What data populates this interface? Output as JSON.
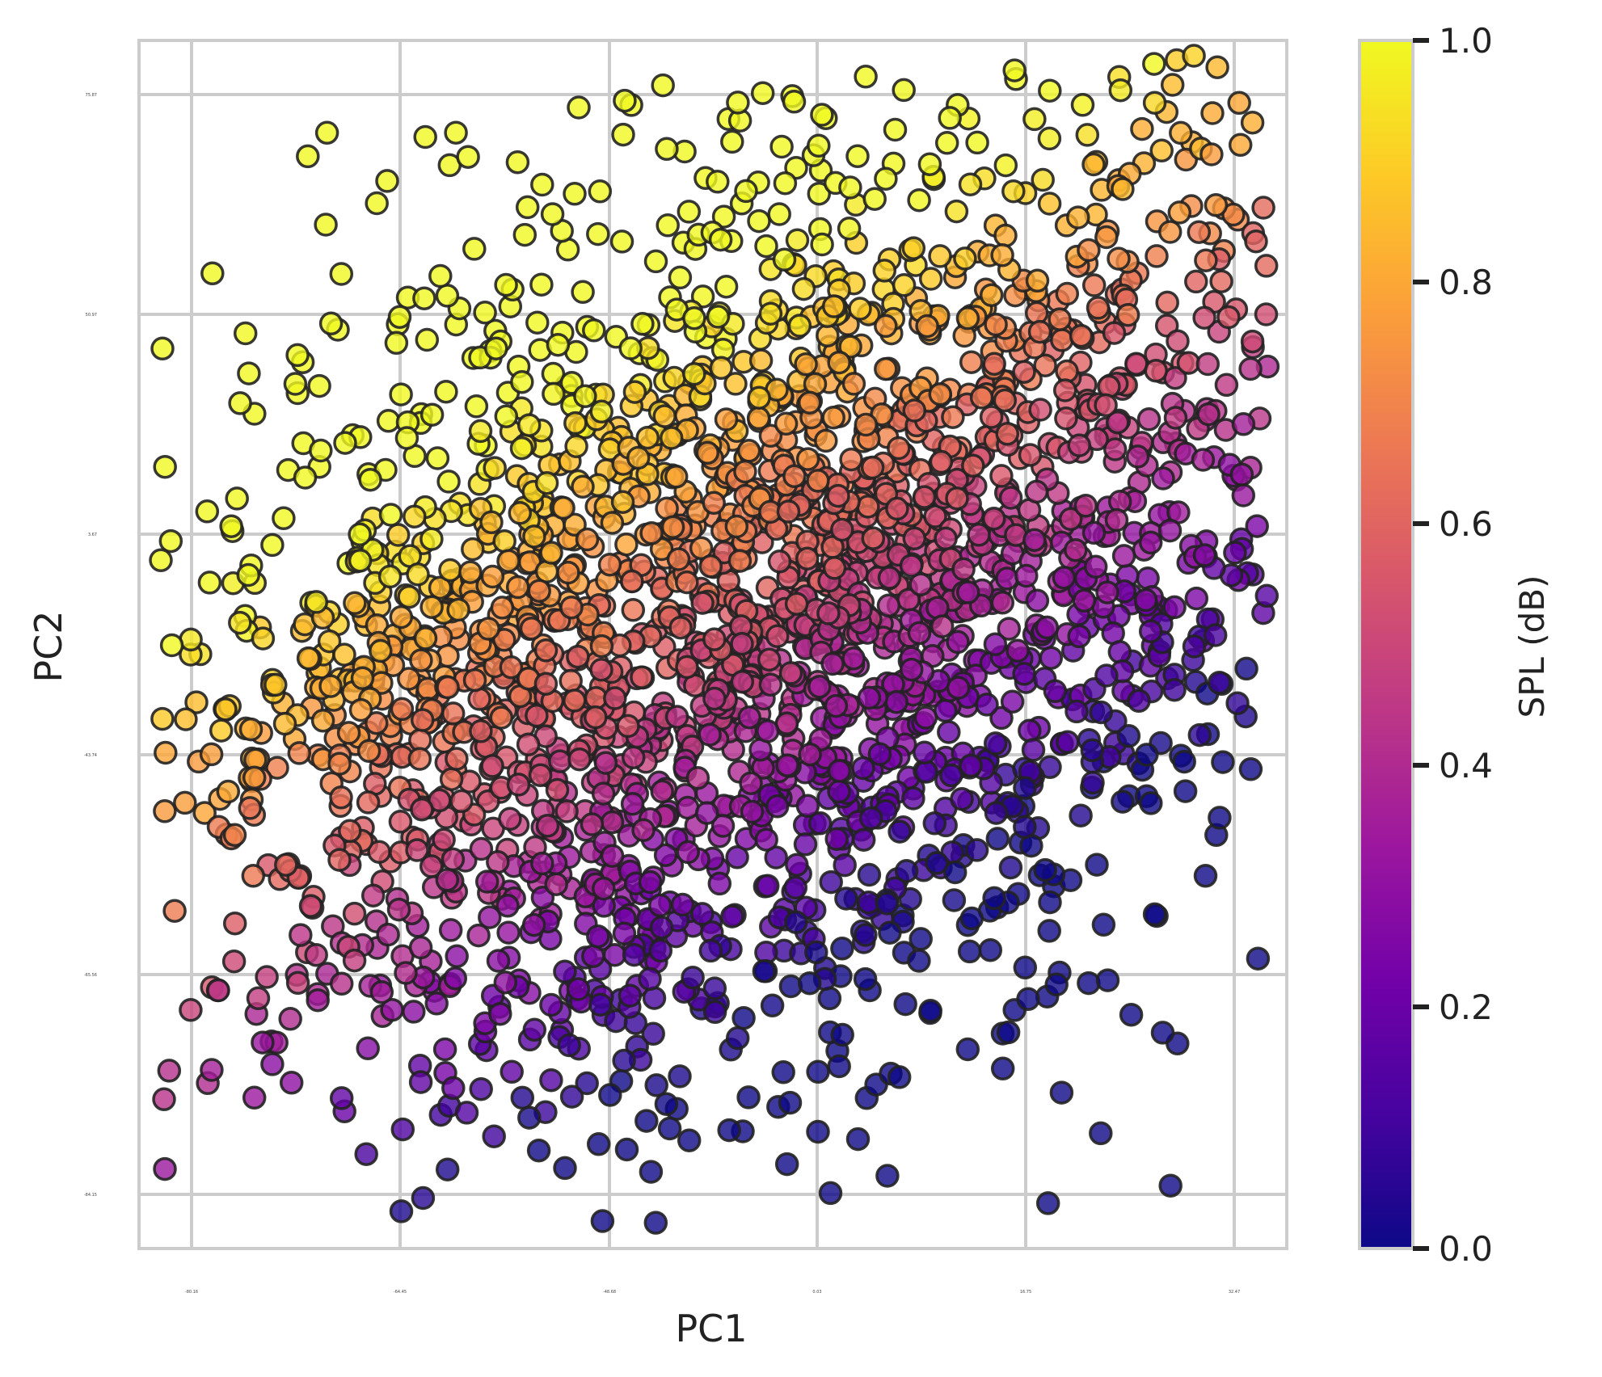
{
  "chart_data": {
    "type": "scatter",
    "title": "",
    "xlabel": "PC1",
    "ylabel": "PC2",
    "x_ticks": [
      "-80.16",
      "-64.45",
      "-48.68",
      "0.03",
      "16.75",
      "32.47"
    ],
    "y_ticks": [
      "75.87",
      "50.97",
      "3.67",
      "-43.74",
      "-65.56",
      "-84.15"
    ],
    "grid": true,
    "colorbar": {
      "label": "SPL (dB)",
      "colormap": "plasma",
      "range": [
        0,
        1
      ],
      "ticks": [
        "0.0",
        "0.2",
        "0.4",
        "0.6",
        "0.8",
        "1.0"
      ]
    },
    "marker": {
      "edge_color": "#222222",
      "alpha": 0.8
    },
    "n_points_approx": 2600,
    "point_cloud_description": "Elliptical cloud tilted upward-right; color decreases from yellow (top-left) to purple (bottom-right).",
    "point_cloud_extent": {
      "pc1_range": [
        -84,
        34
      ],
      "pc2_range": [
        -88,
        80
      ]
    }
  },
  "colors": {
    "grid": "#cccccc",
    "frame": "#cccccc",
    "text": "#222222",
    "plasma": [
      "#0d0887",
      "#46039f",
      "#7201a8",
      "#9c179e",
      "#bd3786",
      "#d8576b",
      "#ed7953",
      "#fb9f3a",
      "#fdca26",
      "#f0f921"
    ]
  }
}
